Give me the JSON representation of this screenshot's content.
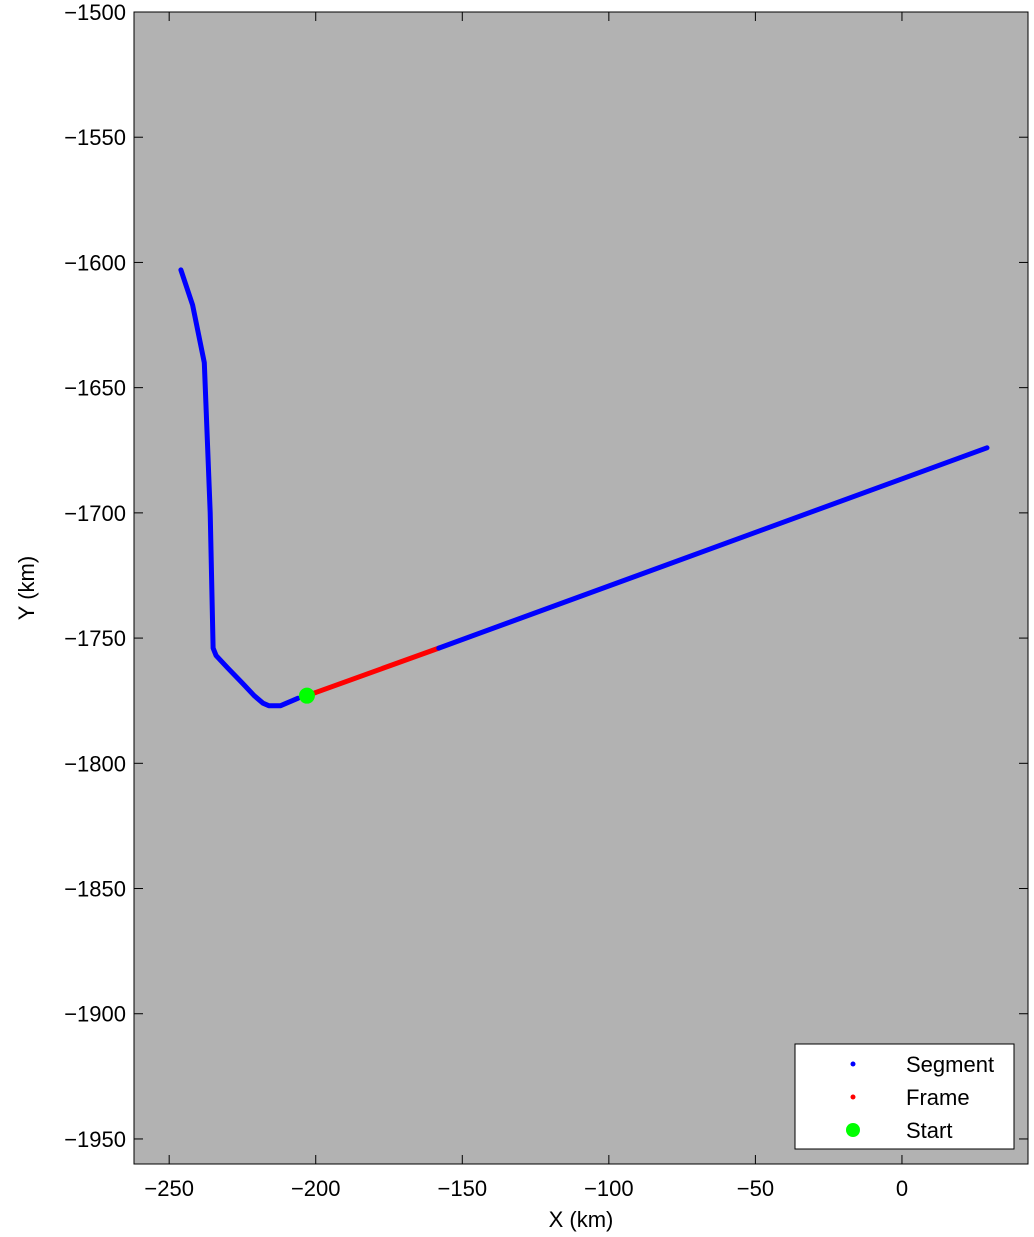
{
  "chart_data": {
    "type": "line",
    "title": "",
    "xlabel": "X (km)",
    "ylabel": "Y (km)",
    "xlim": [
      -262,
      43
    ],
    "ylim": [
      -1960,
      -1500
    ],
    "xticks": [
      -250,
      -200,
      -150,
      -100,
      -50,
      0
    ],
    "yticks": [
      -1500,
      -1550,
      -1600,
      -1650,
      -1700,
      -1750,
      -1800,
      -1850,
      -1900,
      -1950
    ],
    "grid": false,
    "legend_position": "bottom-right",
    "plot_background": "#b2b2b2",
    "series": [
      {
        "name": "Segment",
        "color": "#0000ff",
        "x": [
          -246,
          -242,
          -238,
          -236,
          -235,
          -234,
          -230,
          -225,
          -221,
          -218,
          -216,
          -214,
          -212,
          -210,
          -208,
          -206
        ],
        "y": [
          -1603,
          -1617,
          -1640,
          -1700,
          -1754,
          -1757,
          -1762,
          -1768,
          -1773,
          -1776,
          -1777,
          -1777,
          -1777,
          -1776,
          -1775,
          -1774
        ]
      },
      {
        "name": "Frame",
        "color": "#ff0000",
        "x": [
          -203,
          -158
        ],
        "y": [
          -1773,
          -1754
        ]
      },
      {
        "name": "",
        "color": "#0000ff",
        "x": [
          -158,
          29
        ],
        "y": [
          -1754,
          -1674
        ]
      },
      {
        "name": "Start",
        "color": "#00ff00",
        "marker": "circle",
        "x": [
          -203
        ],
        "y": [
          -1773
        ]
      }
    ],
    "legend": [
      {
        "label": "Segment",
        "color": "#0000ff",
        "marker": "dot"
      },
      {
        "label": "Frame",
        "color": "#ff0000",
        "marker": "dot"
      },
      {
        "label": "Start",
        "color": "#00ff00",
        "marker": "big-dot"
      }
    ]
  }
}
